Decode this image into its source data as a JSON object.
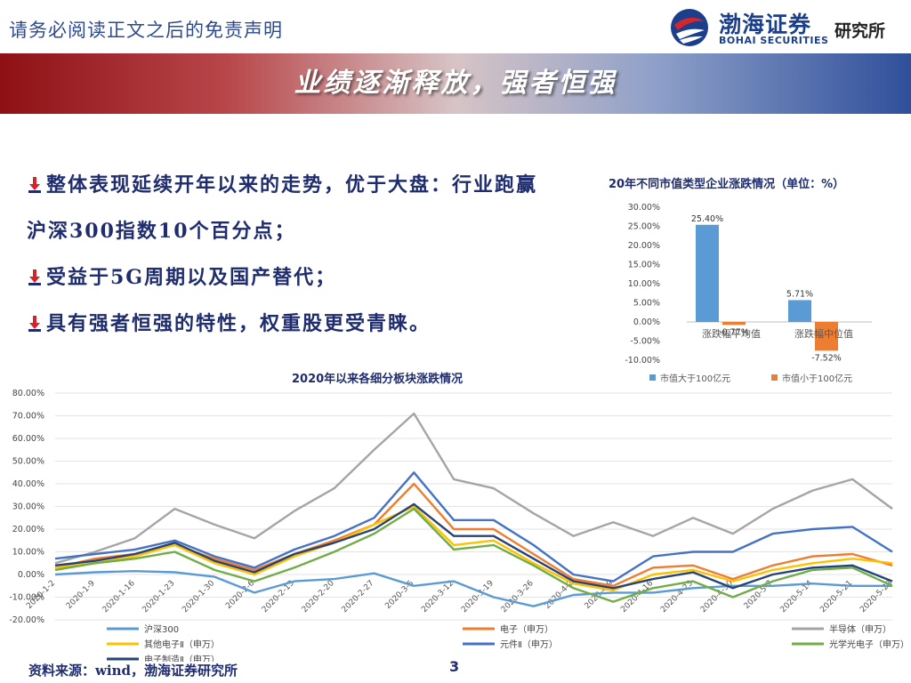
{
  "header": {
    "disclaimer": "请务必阅读正文之后的免责声明",
    "logo_cn": "渤海证券",
    "logo_en": "BOHAI SECURITIES",
    "logo_dept": "研究所"
  },
  "banner": {
    "title": "业绩逐渐释放，强者恒强"
  },
  "bullets": [
    {
      "has_mark": true,
      "text": "整体表现延续开年以来的走势，优于大盘：行业跑赢"
    },
    {
      "has_mark": false,
      "text": "沪深300指数10个百分点；"
    },
    {
      "has_mark": true,
      "text": "受益于5G周期以及国产替代；"
    },
    {
      "has_mark": true,
      "text": "具有强者恒强的特性，权重股更受青睐。"
    }
  ],
  "footer": {
    "source": "资料来源：wind，渤海证券研究所",
    "page": "3"
  },
  "colors": {
    "blue": "#5b9bd5",
    "orange": "#ed7d31",
    "gray": "#a5a5a5",
    "yellow": "#ffc000",
    "darkblue": "#4472c4",
    "green": "#70ad47",
    "navy": "#264478",
    "text": "#1f2d6e"
  },
  "chart_data": [
    {
      "type": "bar",
      "title": "20年不同市值类型企业涨跌情况（单位：%）",
      "categories": [
        "涨跌幅平均值",
        "涨跌幅中位值"
      ],
      "series": [
        {
          "name": "市值大于100亿元",
          "values": [
            25.4,
            5.71
          ],
          "labels": [
            "25.40%",
            "5.71%"
          ],
          "color": "#5b9bd5"
        },
        {
          "name": "市值小于100亿元",
          "values": [
            -0.77,
            -7.52
          ],
          "labels": [
            "-0.77%",
            "-7.52%"
          ],
          "color": "#ed7d31"
        }
      ],
      "ylim": [
        -10,
        30
      ],
      "yticks": [
        30,
        25,
        20,
        15,
        10,
        5,
        0,
        -5,
        -10
      ],
      "ytick_labels": [
        "30.00%",
        "25.00%",
        "20.00%",
        "15.00%",
        "10.00%",
        "5.00%",
        "0.00%",
        "-5.00%",
        "-10.00%"
      ],
      "grid": false,
      "legend": "bottom"
    },
    {
      "type": "line",
      "title": "2020年以来各细分板块涨跌情况",
      "x_tick_labels": [
        "2020-1-2",
        "2020-1-9",
        "2020-1-16",
        "2020-1-23",
        "2020-1-30",
        "2020-2-6",
        "2020-2-13",
        "2020-2-20",
        "2020-2-27",
        "2020-3-5",
        "2020-3-12",
        "2020-3-19",
        "2020-3-26",
        "2020-4-2",
        "2020-4-9",
        "2020-4-16",
        "2020-4-23",
        "2020-4-30",
        "2020-5-7",
        "2020-5-14",
        "2020-5-21",
        "2020-5-28"
      ],
      "ylim": [
        -20,
        80
      ],
      "yticks": [
        80,
        70,
        60,
        50,
        40,
        30,
        20,
        10,
        0,
        -10,
        -20
      ],
      "ytick_labels": [
        "80.00%",
        "70.00%",
        "60.00%",
        "50.00%",
        "40.00%",
        "30.00%",
        "20.00%",
        "10.00%",
        "0.00%",
        "-10.00%",
        "-20.00%"
      ],
      "grid": true,
      "legend": "bottom",
      "series": [
        {
          "name": "沪深300",
          "color": "#5b9bd5",
          "x": [
            0,
            1,
            2,
            3,
            4,
            5,
            6,
            7,
            8,
            9,
            10,
            11,
            12,
            13,
            14,
            15,
            16,
            17,
            18,
            19,
            20,
            21
          ],
          "values": [
            0,
            1,
            1.5,
            1,
            -1,
            -8,
            -3,
            -2,
            0.5,
            -5,
            -3,
            -10,
            -14,
            -9,
            -8,
            -8,
            -6,
            -5,
            -5,
            -4,
            -5,
            -5
          ]
        },
        {
          "name": "电子（申万）",
          "color": "#ed7d31",
          "x": [
            0,
            1,
            2,
            3,
            4,
            5,
            6,
            7,
            8,
            9,
            10,
            11,
            12,
            13,
            14,
            15,
            16,
            17,
            18,
            19,
            20,
            21
          ],
          "values": [
            3,
            7,
            9,
            13,
            7,
            2,
            9,
            15,
            22,
            40,
            20,
            20,
            9,
            -2,
            -5,
            3,
            4,
            -2,
            4,
            8,
            9,
            4
          ]
        },
        {
          "name": "半导体（申万）",
          "color": "#a5a5a5",
          "x": [
            0,
            1,
            2,
            3,
            4,
            5,
            6,
            7,
            8,
            9,
            10,
            11,
            12,
            13,
            14,
            15,
            16,
            17,
            18,
            19,
            20,
            21
          ],
          "values": [
            5,
            10,
            16,
            29,
            22,
            16,
            28,
            38,
            55,
            71,
            42,
            38,
            27,
            17,
            23,
            17,
            25,
            18,
            29,
            37,
            42,
            29
          ]
        },
        {
          "name": "其他电子Ⅱ（申万）",
          "color": "#ffc000",
          "x": [
            0,
            1,
            2,
            3,
            4,
            5,
            6,
            7,
            8,
            9,
            10,
            11,
            12,
            13,
            14,
            15,
            16,
            17,
            18,
            19,
            20,
            21
          ],
          "values": [
            3,
            5,
            8,
            13,
            5,
            0,
            8,
            14,
            22,
            30,
            13,
            15,
            5,
            -4,
            -7,
            0,
            2,
            -3,
            2,
            5,
            7,
            5
          ]
        },
        {
          "name": "元件Ⅱ（申万）",
          "color": "#4472c4",
          "x": [
            0,
            1,
            2,
            3,
            4,
            5,
            6,
            7,
            8,
            9,
            10,
            11,
            12,
            13,
            14,
            15,
            16,
            17,
            18,
            19,
            20,
            21
          ],
          "values": [
            7,
            9,
            11,
            15,
            8,
            3,
            11,
            17,
            25,
            45,
            24,
            24,
            13,
            0,
            -3,
            8,
            10,
            10,
            18,
            20,
            21,
            10
          ]
        },
        {
          "name": "光学光电子（申万）",
          "color": "#70ad47",
          "x": [
            0,
            1,
            2,
            3,
            4,
            5,
            6,
            7,
            8,
            9,
            10,
            11,
            12,
            13,
            14,
            15,
            16,
            17,
            18,
            19,
            20,
            21
          ],
          "values": [
            2,
            5,
            7,
            10,
            2,
            -3,
            3,
            10,
            18,
            29,
            11,
            13,
            4,
            -6,
            -12,
            -6,
            -3,
            -10,
            -3,
            2,
            3,
            -5
          ]
        },
        {
          "name": "电子制造Ⅱ（申万）",
          "color": "#264478",
          "x": [
            0,
            1,
            2,
            3,
            4,
            5,
            6,
            7,
            8,
            9,
            10,
            11,
            12,
            13,
            14,
            15,
            16,
            17,
            18,
            19,
            20,
            21
          ],
          "values": [
            4,
            6,
            9,
            14,
            6,
            1,
            9,
            14,
            20,
            31,
            17,
            17,
            7,
            -3,
            -6,
            -2,
            1,
            -6,
            0,
            3,
            4,
            -3
          ]
        }
      ]
    }
  ]
}
